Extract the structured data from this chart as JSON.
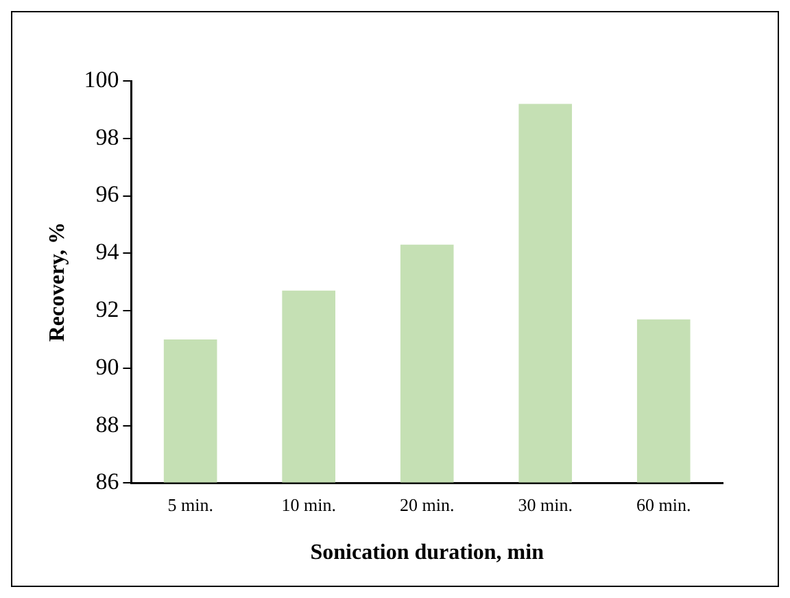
{
  "chart_data": {
    "type": "bar",
    "xlabel": "Sonication duration, min",
    "ylabel": "Recovery, %",
    "categories": [
      "5 min.",
      "10 min.",
      "20 min.",
      "30 min.",
      "60 min."
    ],
    "series": [
      {
        "color": "#c5e0b4",
        "values": [
          91.0,
          92.7,
          94.3,
          99.2,
          91.7
        ]
      }
    ],
    "ylim": [
      86,
      100
    ],
    "yticks": [
      86,
      88,
      90,
      92,
      94,
      96,
      98,
      100
    ],
    "grid": false,
    "legend": false
  }
}
